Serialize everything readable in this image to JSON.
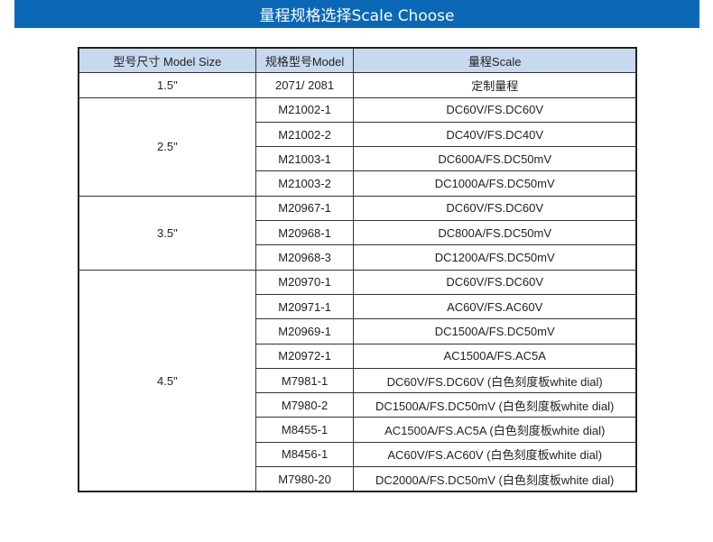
{
  "title": "量程规格选择Scale Choose",
  "colors": {
    "title_bar": "#0b68b6",
    "header_bg": "#c7d9ee"
  },
  "table": {
    "headers": [
      "型号尺寸 Model Size",
      "规格型号Model",
      "量程Scale"
    ],
    "groups": [
      {
        "size": "1.5\"",
        "rows": [
          {
            "model": "2071/ 2081",
            "scale": "定制量程"
          }
        ]
      },
      {
        "size": "2.5\"",
        "rows": [
          {
            "model": "M21002-1",
            "scale": "DC60V/FS.DC60V"
          },
          {
            "model": "M21002-2",
            "scale": "DC40V/FS.DC40V"
          },
          {
            "model": "M21003-1",
            "scale": "DC600A/FS.DC50mV"
          },
          {
            "model": "M21003-2",
            "scale": "DC1000A/FS.DC50mV"
          }
        ]
      },
      {
        "size": "3.5\"",
        "rows": [
          {
            "model": "M20967-1",
            "scale": "DC60V/FS.DC60V"
          },
          {
            "model": "M20968-1",
            "scale": "DC800A/FS.DC50mV"
          },
          {
            "model": "M20968-3",
            "scale": "DC1200A/FS.DC50mV"
          }
        ]
      },
      {
        "size": "4.5\"",
        "rows": [
          {
            "model": "M20970-1",
            "scale": "DC60V/FS.DC60V"
          },
          {
            "model": "M20971-1",
            "scale": "AC60V/FS.AC60V"
          },
          {
            "model": "M20969-1",
            "scale": "DC1500A/FS.DC50mV"
          },
          {
            "model": "M20972-1",
            "scale": "AC1500A/FS.AC5A"
          },
          {
            "model": "M7981-1",
            "scale": "DC60V/FS.DC60V (白色刻度板white dial)"
          },
          {
            "model": "M7980-2",
            "scale": "DC1500A/FS.DC50mV (白色刻度板white dial)"
          },
          {
            "model": "M8455-1",
            "scale": "AC1500A/FS.AC5A (白色刻度板white dial)"
          },
          {
            "model": "M8456-1",
            "scale": "AC60V/FS.AC60V (白色刻度板white dial)"
          },
          {
            "model": "M7980-20",
            "scale": "DC2000A/FS.DC50mV (白色刻度板white dial)"
          }
        ]
      }
    ]
  }
}
